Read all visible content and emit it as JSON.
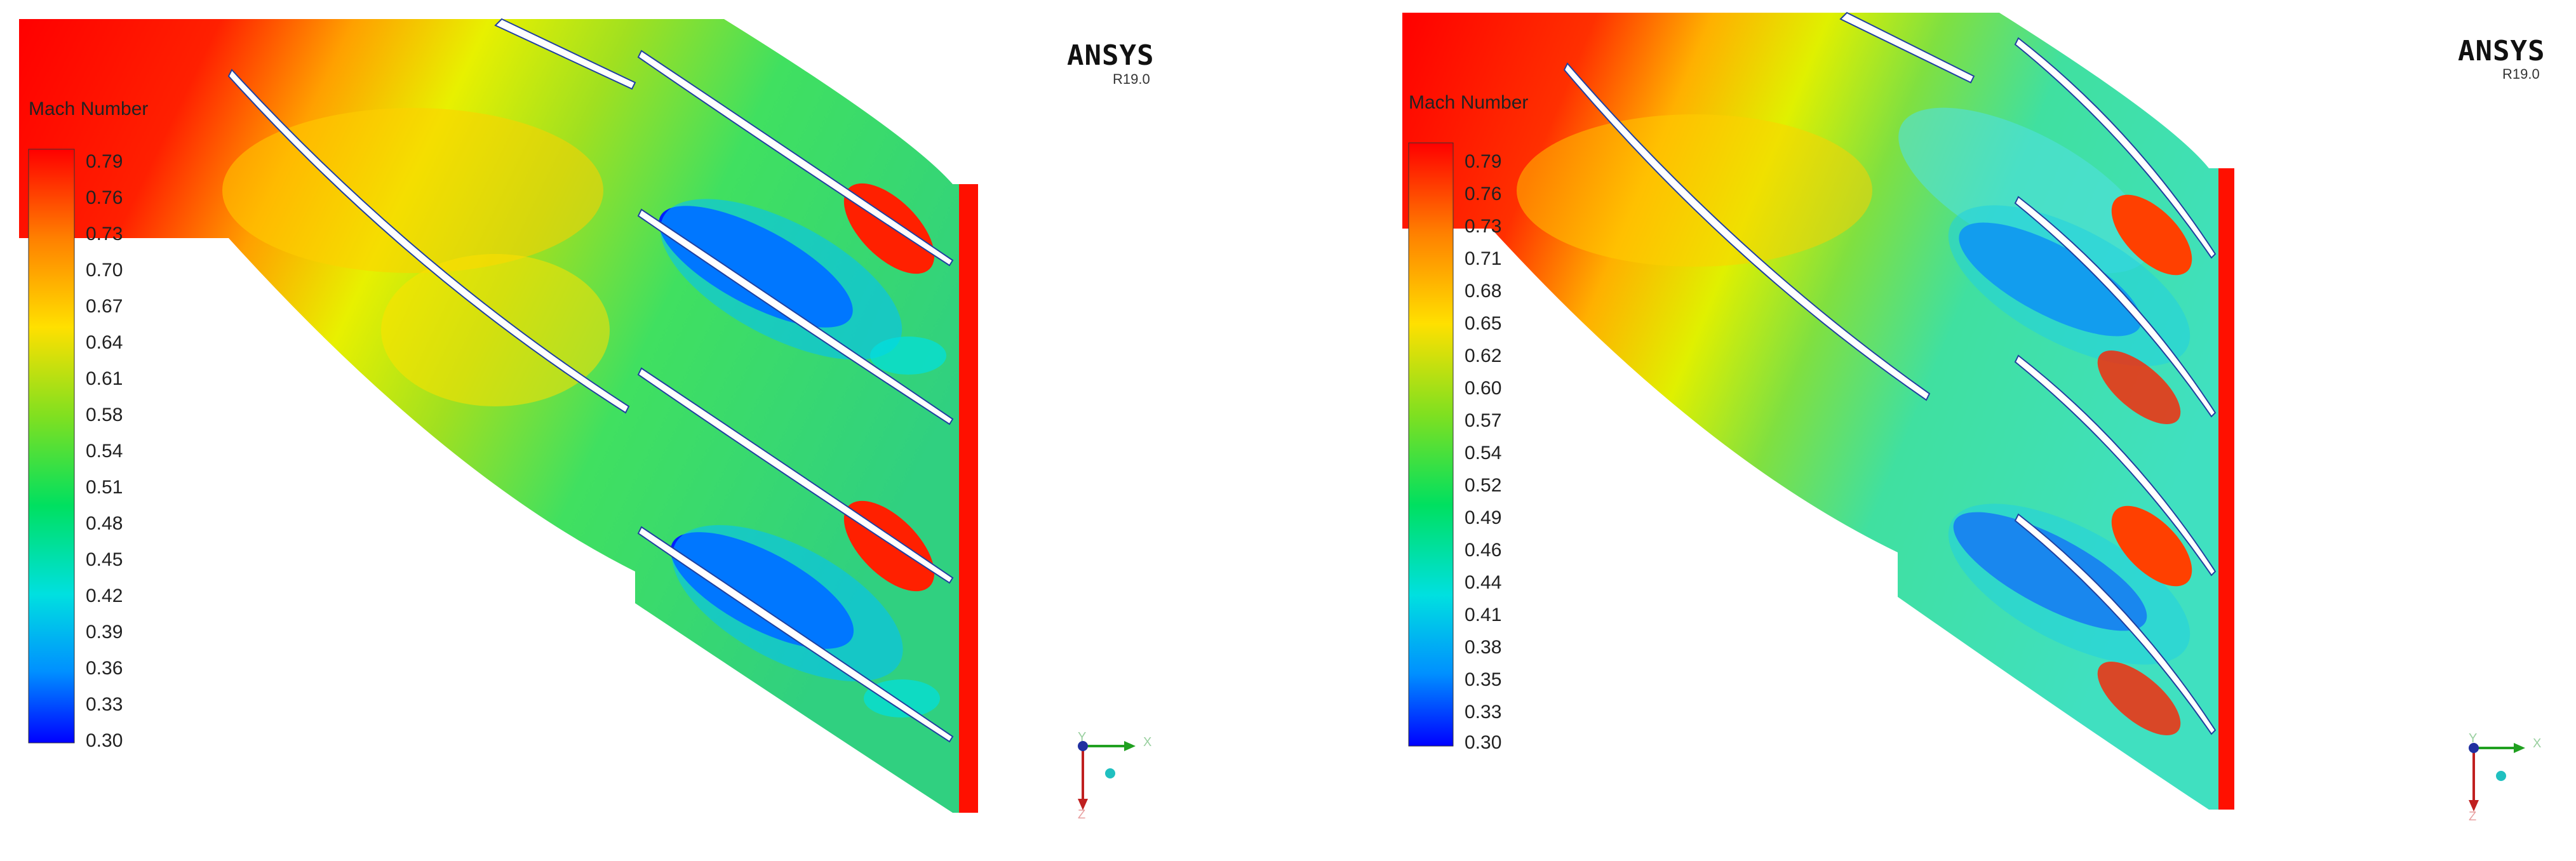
{
  "panels": [
    {
      "legend": {
        "title": "Mach Number",
        "ticks": [
          "0.79",
          "0.76",
          "0.73",
          "0.70",
          "0.67",
          "0.64",
          "0.61",
          "0.58",
          "0.54",
          "0.51",
          "0.48",
          "0.45",
          "0.42",
          "0.39",
          "0.36",
          "0.33",
          "0.30"
        ],
        "min": 0.3,
        "max": 0.79
      },
      "branding": {
        "name": "ANSYS",
        "version": "R19.0"
      },
      "axes": {
        "x": "X",
        "y": "Y",
        "z": "Z"
      }
    },
    {
      "legend": {
        "title": "Mach Number",
        "ticks": [
          "0.79",
          "0.76",
          "0.73",
          "0.71",
          "0.68",
          "0.65",
          "0.62",
          "0.60",
          "0.57",
          "0.54",
          "0.52",
          "0.49",
          "0.46",
          "0.44",
          "0.41",
          "0.38",
          "0.35",
          "0.33",
          "0.30"
        ],
        "min": 0.3,
        "max": 0.79
      },
      "branding": {
        "name": "ANSYS",
        "version": "R19.0"
      },
      "axes": {
        "x": "X",
        "y": "Y",
        "z": "Z"
      }
    }
  ],
  "colors": {
    "high": "#ff0000",
    "upper": "#ff9900",
    "mid": "#f0f000",
    "middle_low": "#30e030",
    "low_mid": "#00e0e0",
    "low": "#0000ff",
    "blade": "#ffffff"
  }
}
